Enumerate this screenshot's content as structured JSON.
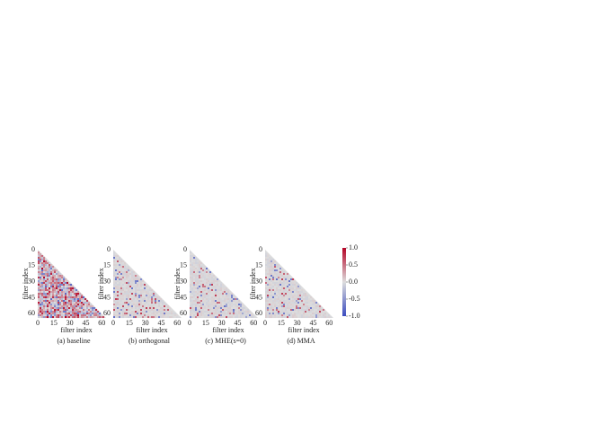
{
  "chart_data": [
    {
      "type": "heatmap",
      "caption": "(a) baseline",
      "xlabel": "filter index",
      "ylabel": "filter index",
      "xlim": [
        0,
        64
      ],
      "ylim": [
        0,
        64
      ],
      "xticks": [
        0,
        15,
        30,
        45,
        60
      ],
      "yticks": [
        0,
        15,
        30,
        45,
        60
      ]
    },
    {
      "type": "heatmap",
      "caption": "(b) orthogonal",
      "xlabel": "filter index",
      "ylabel": "filter index",
      "xlim": [
        0,
        64
      ],
      "ylim": [
        0,
        64
      ],
      "xticks": [
        0,
        15,
        30,
        45,
        60
      ],
      "yticks": [
        0,
        15,
        30,
        45,
        60
      ]
    },
    {
      "type": "heatmap",
      "caption": "(c) MHE(s=0)",
      "xlabel": "filter index",
      "ylabel": "filter index",
      "xlim": [
        0,
        64
      ],
      "ylim": [
        0,
        64
      ],
      "xticks": [
        0,
        15,
        30,
        45,
        60
      ],
      "yticks": [
        0,
        15,
        30,
        45,
        60
      ]
    },
    {
      "type": "heatmap",
      "caption": "(d) MMA",
      "xlabel": "filter index",
      "ylabel": "filter index",
      "xlim": [
        0,
        64
      ],
      "ylim": [
        0,
        64
      ],
      "xticks": [
        0,
        15,
        30,
        45,
        60
      ],
      "yticks": [
        0,
        15,
        30,
        45,
        60
      ]
    }
  ],
  "colorbar": {
    "lim": [
      -1,
      1
    ],
    "colors": [
      "#3b4cc0",
      "#dddddd",
      "#b40426"
    ],
    "ticks": [
      {
        "value": 1,
        "label": "1.0"
      },
      0.5,
      {
        "value": 0,
        "label": "0.0"
      },
      -0.5,
      {
        "value": -1,
        "label": "-1.0"
      }
    ]
  }
}
